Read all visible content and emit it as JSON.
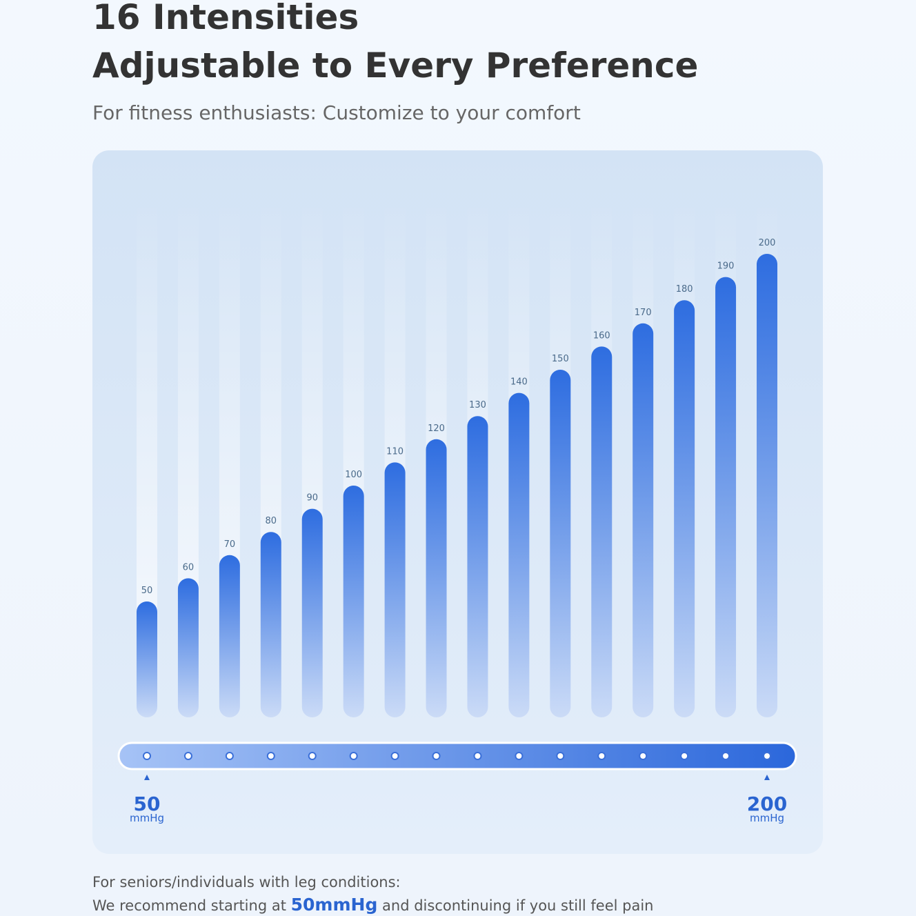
{
  "header": {
    "title_line1": "16 Intensities",
    "title_line2": "Adjustable to Every Preference",
    "subtitle": "For fitness enthusiasts: Customize to your comfort"
  },
  "chart_data": {
    "type": "bar",
    "values": [
      50,
      60,
      70,
      80,
      90,
      100,
      110,
      120,
      130,
      140,
      150,
      160,
      170,
      180,
      190,
      200
    ],
    "color": "#2e6de0"
  },
  "slider": {
    "min": "50",
    "max": "200",
    "unit": "mmHg"
  },
  "footer": {
    "line1": "For seniors/individuals with leg conditions:",
    "line2_before": "We recommend starting at",
    "highlight": "50mmHg",
    "line2_after": "and discontinuing if you still feel pain"
  }
}
